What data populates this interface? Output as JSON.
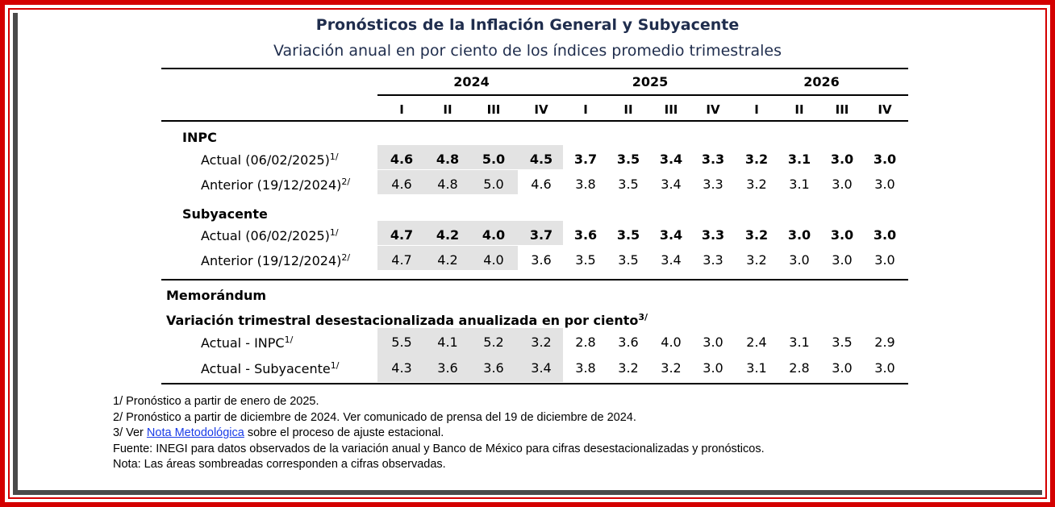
{
  "title": "Pronósticos de la Inflación General y Subyacente",
  "subtitle": "Variación anual en por ciento de los índices promedio trimestrales",
  "years": [
    "2024",
    "2025",
    "2026"
  ],
  "quarters": [
    "I",
    "II",
    "III",
    "IV",
    "I",
    "II",
    "III",
    "IV",
    "I",
    "II",
    "III",
    "IV"
  ],
  "sections": {
    "inpc": {
      "heading": "INPC",
      "rows": [
        {
          "label": "Actual (06/02/2025)",
          "sup": "1/",
          "bold": true,
          "values": [
            "4.6",
            "4.8",
            "5.0",
            "4.5",
            "3.7",
            "3.5",
            "3.4",
            "3.3",
            "3.2",
            "3.1",
            "3.0",
            "3.0"
          ]
        },
        {
          "label": "Anterior (19/12/2024)",
          "sup": "2/",
          "bold": false,
          "values": [
            "4.6",
            "4.8",
            "5.0",
            "4.6",
            "3.8",
            "3.5",
            "3.4",
            "3.3",
            "3.2",
            "3.1",
            "3.0",
            "3.0"
          ]
        }
      ]
    },
    "subyacente": {
      "heading": "Subyacente",
      "rows": [
        {
          "label": "Actual (06/02/2025)",
          "sup": "1/",
          "bold": true,
          "values": [
            "4.7",
            "4.2",
            "4.0",
            "3.7",
            "3.6",
            "3.5",
            "3.4",
            "3.3",
            "3.2",
            "3.0",
            "3.0",
            "3.0"
          ]
        },
        {
          "label": "Anterior (19/12/2024)",
          "sup": "2/",
          "bold": false,
          "values": [
            "4.7",
            "4.2",
            "4.0",
            "3.6",
            "3.5",
            "3.5",
            "3.4",
            "3.3",
            "3.2",
            "3.0",
            "3.0",
            "3.0"
          ]
        }
      ]
    },
    "memo": {
      "heading": "Memorándum",
      "subheading": "Variación trimestral desestacionalizada anualizada en por ciento",
      "subheading_sup": "3/",
      "rows": [
        {
          "label": "Actual - INPC",
          "sup": "1/",
          "bold": false,
          "values": [
            "5.5",
            "4.1",
            "5.2",
            "3.2",
            "2.8",
            "3.6",
            "4.0",
            "3.0",
            "2.4",
            "3.1",
            "3.5",
            "2.9"
          ]
        },
        {
          "label": "Actual - Subyacente",
          "sup": "1/",
          "bold": false,
          "values": [
            "4.3",
            "3.6",
            "3.6",
            "3.4",
            "3.8",
            "3.2",
            "3.2",
            "3.0",
            "3.1",
            "2.8",
            "3.0",
            "3.0"
          ]
        }
      ]
    }
  },
  "notes": {
    "n1": "1/ Pronóstico a partir de enero de 2025.",
    "n2": "2/ Pronóstico a partir de diciembre de 2024. Ver comunicado de prensa del 19 de diciembre de 2024.",
    "n3_prefix": "3/ Ver ",
    "n3_link": "Nota Metodológica",
    "n3_suffix": " sobre el proceso de ajuste estacional.",
    "fuente": "Fuente: INEGI para datos observados de la variación anual y Banco de México para cifras desestacionalizadas y pronósticos.",
    "nota": "Nota: Las áreas sombreadas corresponden a cifras observadas."
  },
  "colors": {
    "frame": "#d40000",
    "title": "#1f2d4d",
    "shade": "#e3e3e3",
    "link": "#1a3de8"
  }
}
